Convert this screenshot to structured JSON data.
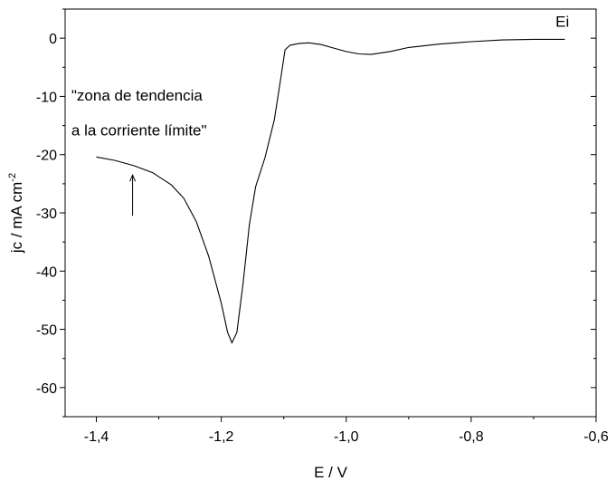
{
  "chart_data": {
    "type": "line",
    "xlabel": "E / V",
    "ylabel": {
      "main": "jc / mA cm",
      "superscript": "-2"
    },
    "xlim": [
      -1.45,
      -0.6
    ],
    "ylim": [
      -65,
      5
    ],
    "x_ticks": [
      -1.4,
      -1.2,
      -1.0,
      -0.8,
      -0.6
    ],
    "x_tick_labels": [
      "-1,4",
      "-1,2",
      "-1,0",
      "-0,8",
      "-0,6"
    ],
    "y_ticks": [
      0,
      -10,
      -20,
      -30,
      -40,
      -50,
      -60
    ],
    "y_tick_labels": [
      "0",
      "-10",
      "-20",
      "-30",
      "-40",
      "-50",
      "-60"
    ],
    "grid": false,
    "series": [
      {
        "color": "#000000",
        "points": [
          [
            -1.4,
            -20.4
          ],
          [
            -1.37,
            -21.0
          ],
          [
            -1.34,
            -21.9
          ],
          [
            -1.31,
            -23.1
          ],
          [
            -1.28,
            -25.2
          ],
          [
            -1.26,
            -27.5
          ],
          [
            -1.24,
            -31.5
          ],
          [
            -1.22,
            -37.5
          ],
          [
            -1.2,
            -45.5
          ],
          [
            -1.19,
            -50.5
          ],
          [
            -1.183,
            -52.3
          ],
          [
            -1.175,
            -50.5
          ],
          [
            -1.165,
            -42.0
          ],
          [
            -1.155,
            -32.0
          ],
          [
            -1.145,
            -25.5
          ],
          [
            -1.13,
            -20.5
          ],
          [
            -1.115,
            -14.0
          ],
          [
            -1.105,
            -7.0
          ],
          [
            -1.098,
            -2.0
          ],
          [
            -1.09,
            -1.2
          ],
          [
            -1.075,
            -0.9
          ],
          [
            -1.06,
            -0.8
          ],
          [
            -1.04,
            -1.1
          ],
          [
            -1.02,
            -1.7
          ],
          [
            -1.0,
            -2.3
          ],
          [
            -0.98,
            -2.7
          ],
          [
            -0.96,
            -2.8
          ],
          [
            -0.93,
            -2.3
          ],
          [
            -0.9,
            -1.6
          ],
          [
            -0.85,
            -1.0
          ],
          [
            -0.8,
            -0.6
          ],
          [
            -0.75,
            -0.3
          ],
          [
            -0.7,
            -0.2
          ],
          [
            -0.65,
            -0.2
          ]
        ]
      }
    ],
    "annotations": [
      {
        "text": "Ei",
        "x": -0.665,
        "y": 2.0
      },
      {
        "text": "\"zona de tendencia",
        "x": -1.44,
        "y": -10.7
      },
      {
        "text": "a la corriente límite\"",
        "x": -1.44,
        "y": -16.7
      }
    ],
    "arrow": {
      "x": -1.342,
      "y_from": -30.5,
      "y_to": -23.5
    }
  }
}
